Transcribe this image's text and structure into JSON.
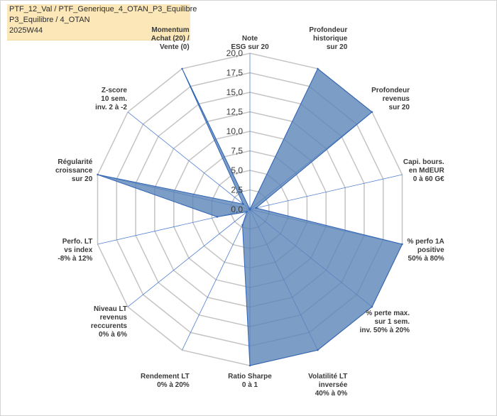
{
  "title_lines": [
    "PTF_12_Val / PTF_Generique_4_OTAN_P3_Equilibre",
    "P3_Equilibre / 4_OTAN",
    "2025W44"
  ],
  "colors": {
    "fill": "#5b84b8",
    "fill_opacity": 0.8,
    "stroke": "#2f63b5",
    "grid": "#c4c4c4",
    "spoke": "#4f7fd0",
    "title_bg": "#fbe7b8"
  },
  "chart_data": {
    "type": "radar",
    "rmax": 20,
    "ticks": [
      "0,0",
      "2,5",
      "5,0",
      "7,5",
      "10,0",
      "12,5",
      "15,0",
      "17,5",
      "20,0"
    ],
    "tick_values": [
      0,
      2.5,
      5,
      7.5,
      10,
      12.5,
      15,
      17.5,
      20
    ],
    "axes": [
      {
        "label": [
          "Note",
          "ESG sur 20"
        ],
        "value": 0
      },
      {
        "label": [
          "Profondeur",
          "historique",
          "sur 20"
        ],
        "value": 20
      },
      {
        "label": [
          "Profondeur",
          "revenus",
          "sur 20"
        ],
        "value": 20
      },
      {
        "label": [
          "Capi. bours.",
          "en MdEUR",
          "0 à 60 G€"
        ],
        "value": 0.8
      },
      {
        "label": [
          "% perfo 1A",
          "positive",
          "50% à 80%"
        ],
        "value": 20
      },
      {
        "label": [
          "% perte max.",
          "sur 1 sem.",
          "inv. 50% à 20%"
        ],
        "value": 20
      },
      {
        "label": [
          "Volatilité LT",
          "inversée",
          "40% à 0%"
        ],
        "value": 20
      },
      {
        "label": [
          "Ratio Sharpe",
          "0 à 1"
        ],
        "value": 20
      },
      {
        "label": [
          "Rendement LT",
          "0% à 20%"
        ],
        "value": 2.2
      },
      {
        "label": [
          "Niveau LT",
          "revenus",
          "reccurents",
          "0% à 6%"
        ],
        "value": 0.5
      },
      {
        "label": [
          "Perfo. LT",
          "vs index",
          "-8% à 12%"
        ],
        "value": 4.3
      },
      {
        "label": [
          "Régularité",
          "croissance",
          "sur 20"
        ],
        "value": 20
      },
      {
        "label": [
          "Z-score",
          "10 sem.",
          "inv. 2 à -2"
        ],
        "value": 1.1
      },
      {
        "label": [
          "Momentum",
          "Achat (20) /",
          "Vente (0)"
        ],
        "value": 20
      }
    ]
  }
}
